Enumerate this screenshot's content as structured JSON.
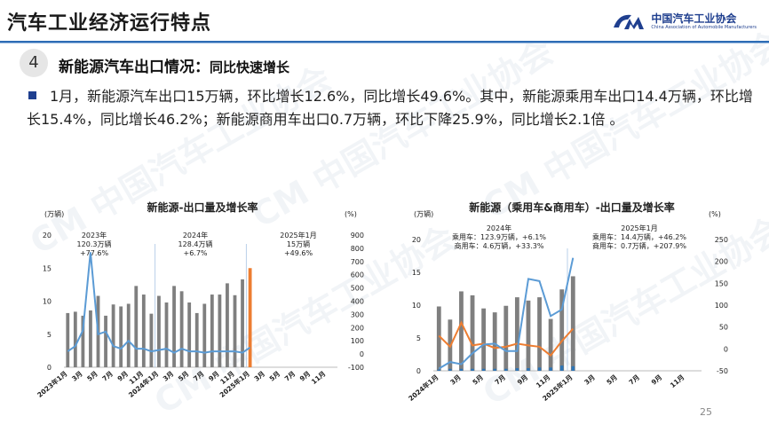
{
  "header": {
    "title": "汽车工业经济运行特点",
    "logo_cn": "中国汽车工业协会",
    "logo_en": "China Association of Automobile Manufacturers"
  },
  "section": {
    "number": "4",
    "heading": "新能源汽车出口情况：",
    "subheading": "同比快速增长"
  },
  "paragraph": "1月，新能源汽车出口15万辆，环比增长12.6%，同比增长49.6%。其中，新能源乘用车出口14.4万辆，环比增长15.4%，同比增长46.2%；新能源商用车出口0.7万辆，环比下降25.9%，同比增长2.1倍 。",
  "page_number": "25",
  "colors": {
    "accent": "#2d6cb5",
    "bar_gray": "#7f7f7f",
    "bar_orange": "#ed7d31",
    "line_blue": "#5b9bd5",
    "dark_blue": "#2e75b6"
  },
  "chart_data": [
    {
      "type": "bar",
      "title": "新能源-出口量及增长率",
      "y_left_unit": "(万辆)",
      "y_right_unit": "(%)",
      "ylim": [
        0,
        20
      ],
      "ylim_right": [
        -100,
        900
      ],
      "y_ticks": [
        "0",
        "5",
        "10",
        "15",
        "20"
      ],
      "y_right_ticks": [
        "-100",
        "0",
        "100",
        "200",
        "300",
        "400",
        "500",
        "600",
        "700",
        "800",
        "900"
      ],
      "x_tick_labels": [
        "2023年1月",
        "3月",
        "5月",
        "7月",
        "9月",
        "11月",
        "2024年1月",
        "3月",
        "5月",
        "7月",
        "9月",
        "11月",
        "2025年1月",
        "3月",
        "5月",
        "7月",
        "9月",
        "11月"
      ],
      "annotations": [
        {
          "lines": [
            "2023年",
            "120.3万辆",
            "+77.6%"
          ]
        },
        {
          "lines": [
            "2024年",
            "128.4万辆",
            "+6.7%"
          ]
        },
        {
          "lines": [
            "2025年1月",
            "15万辆",
            "+49.6%"
          ]
        }
      ],
      "series": [
        {
          "type": "bar",
          "values": [
            8.2,
            8.4,
            7.8,
            8.6,
            10.8,
            7.8,
            9.5,
            9.2,
            9.6,
            12.3,
            11,
            8.1,
            10.8,
            9.8,
            12.3,
            11.5,
            9.8,
            8.2,
            9.6,
            11,
            11,
            12.7,
            10.9,
            13.3,
            15
          ]
        },
        {
          "type": "line",
          "values": [
            20,
            60,
            180,
            770,
            150,
            170,
            60,
            40,
            100,
            40,
            40,
            20,
            30,
            40,
            10,
            40,
            20,
            20,
            10,
            20,
            20,
            20,
            20,
            10,
            50
          ]
        }
      ],
      "highlight_last_bar": true
    },
    {
      "type": "bar",
      "title": "新能源（乘用车&商用车）-出口量及增长率",
      "y_left_unit": "(万辆)",
      "y_right_unit": "(%)",
      "ylim": [
        0,
        20
      ],
      "ylim_right": [
        -50,
        250
      ],
      "y_ticks": [
        "0",
        "5",
        "10",
        "15",
        "20"
      ],
      "y_right_ticks": [
        "-50",
        "0",
        "50",
        "100",
        "150",
        "200",
        "250"
      ],
      "x_tick_labels": [
        "2024年1月",
        "3月",
        "5月",
        "7月",
        "9月",
        "11月",
        "2025年1月",
        "3月",
        "5月",
        "7月",
        "9月",
        "11月"
      ],
      "annotations": [
        {
          "lines": [
            "2024年",
            "乘用车：123.9万辆，+6.1%",
            "商用车：4.6万辆，+33.3%"
          ]
        },
        {
          "lines": [
            "2025年1月",
            "乘用车：14.4万辆，+46.2%",
            "商用车：0.7万辆，+207.9%"
          ]
        }
      ],
      "series": [
        {
          "type": "bar",
          "values": [
            9.8,
            7.8,
            12.1,
            11.5,
            9.5,
            8.9,
            9.9,
            11.2,
            10.7,
            11.2,
            7.9,
            12.4,
            14.4
          ]
        },
        {
          "type": "bar",
          "values": [
            0.2,
            0.3,
            0.3,
            0.3,
            0.3,
            0.3,
            0.3,
            0.4,
            0.4,
            0.5,
            0.5,
            0.8,
            0.7
          ]
        },
        {
          "type": "line",
          "values": [
            30,
            5,
            60,
            8,
            12,
            2,
            5,
            12,
            8,
            5,
            -15,
            18,
            46
          ]
        },
        {
          "type": "line",
          "values": [
            -45,
            -30,
            -35,
            -10,
            10,
            12,
            -5,
            -5,
            160,
            155,
            75,
            90,
            208
          ]
        }
      ]
    }
  ]
}
